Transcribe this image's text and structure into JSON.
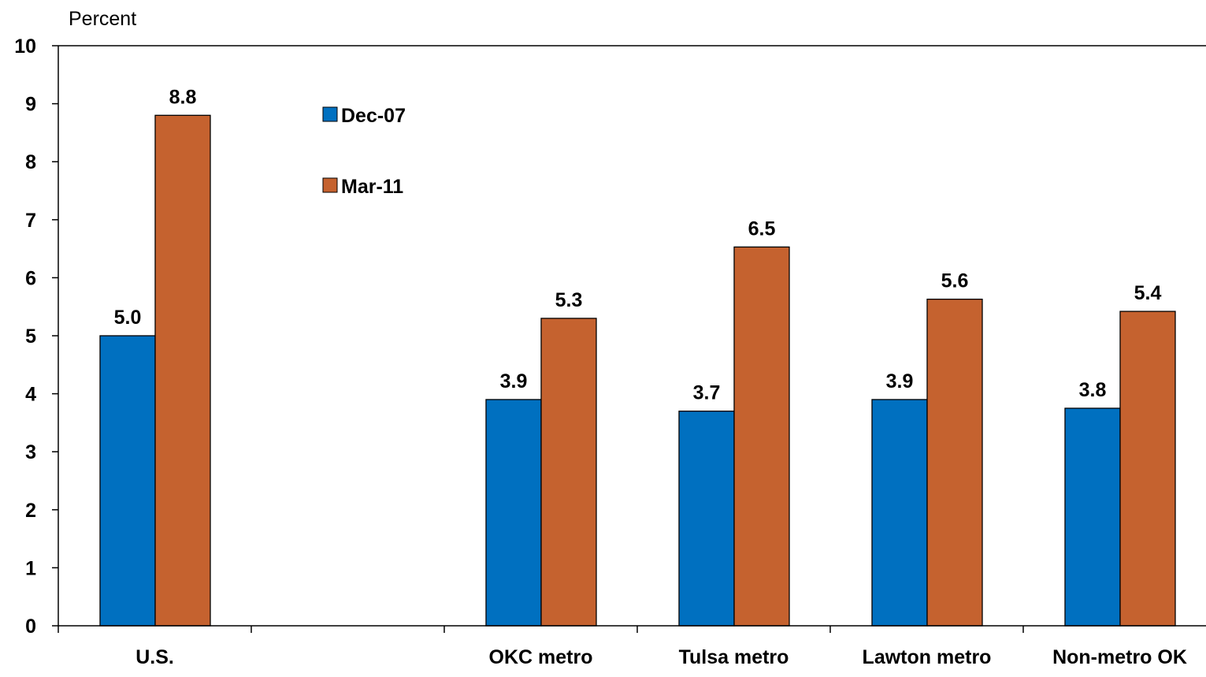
{
  "chart_data": {
    "type": "bar",
    "title": "",
    "ylabel": "Percent",
    "xlabel": "",
    "ylim": [
      0,
      10
    ],
    "yticks": [
      0,
      1,
      2,
      3,
      4,
      5,
      6,
      7,
      8,
      9,
      10
    ],
    "grid": false,
    "legend_position": "top-left, inside plot",
    "categories": [
      "U.S.",
      "",
      "OKC metro",
      "Tulsa metro",
      "Lawton metro",
      "Non-metro OK"
    ],
    "series": [
      {
        "name": "Dec-07",
        "color": "#0070C0",
        "values": [
          5.0,
          null,
          3.9,
          3.7,
          3.9,
          3.75
        ],
        "labels": [
          "5.0",
          "",
          "3.9",
          "3.7",
          "3.9",
          "3.8"
        ]
      },
      {
        "name": "Mar-11",
        "color": "#C5622F",
        "values": [
          8.8,
          null,
          5.3,
          6.53,
          5.63,
          5.42
        ],
        "labels": [
          "8.8",
          "",
          "5.3",
          "6.5",
          "5.6",
          "5.4"
        ]
      }
    ]
  }
}
